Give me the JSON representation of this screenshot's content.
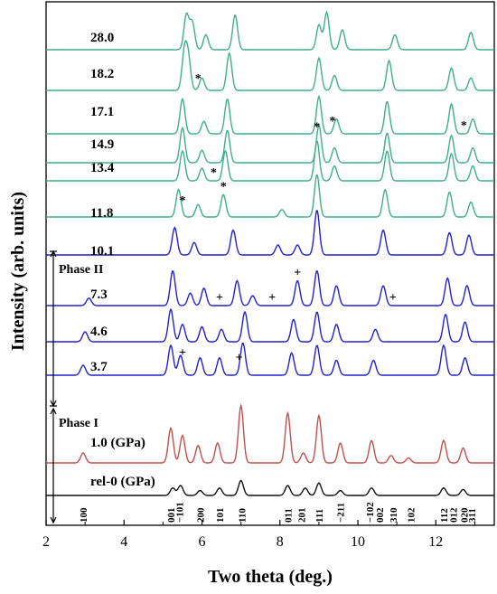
{
  "chart_data": {
    "type": "line",
    "xlabel": "Two theta (deg.)",
    "ylabel": "Intensity (arb. units)",
    "xlim": [
      2,
      13.5
    ],
    "xticks": [
      "2",
      "4",
      "6",
      "8",
      "10",
      "12"
    ],
    "xtick_values": [
      2,
      4,
      6,
      8,
      10,
      12
    ],
    "phase_labels": [
      {
        "label": "Phase II",
        "group": "blue"
      },
      {
        "label": "Phase I",
        "group": "low"
      }
    ],
    "colors": {
      "high": "#3fae8d",
      "mid": "#2222cc",
      "red": "#c0504d",
      "black": "#111111"
    },
    "series": [
      {
        "name": "28.0",
        "group": "high",
        "peaks": [
          [
            5.6,
            70
          ],
          [
            5.75,
            55
          ],
          [
            6.1,
            30
          ],
          [
            6.85,
            70
          ],
          [
            9.0,
            50
          ],
          [
            9.2,
            75
          ],
          [
            9.6,
            40
          ],
          [
            10.95,
            30
          ],
          [
            12.9,
            35
          ]
        ]
      },
      {
        "name": "18.2",
        "group": "high",
        "peaks": [
          [
            5.55,
            75
          ],
          [
            5.65,
            60
          ],
          [
            6.0,
            25
          ],
          [
            6.7,
            75
          ],
          [
            9.0,
            65
          ],
          [
            9.4,
            30
          ],
          [
            10.8,
            60
          ],
          [
            12.4,
            45
          ],
          [
            12.9,
            25
          ]
        ]
      },
      {
        "name": "17.1",
        "group": "high",
        "peaks": [
          [
            5.5,
            70
          ],
          [
            6.05,
            25
          ],
          [
            6.65,
            70
          ],
          [
            9.0,
            75
          ],
          [
            9.45,
            30
          ],
          [
            10.75,
            65
          ],
          [
            12.4,
            60
          ],
          [
            12.95,
            30
          ]
        ]
      },
      {
        "name": "14.9",
        "group": "high",
        "peaks": [
          [
            5.5,
            70
          ],
          [
            6.0,
            25
          ],
          [
            6.65,
            65
          ],
          [
            9.0,
            75
          ],
          [
            9.4,
            30
          ],
          [
            10.75,
            60
          ],
          [
            12.4,
            55
          ],
          [
            12.95,
            30
          ]
        ]
      },
      {
        "name": "13.4",
        "group": "high",
        "peaks": [
          [
            5.5,
            60
          ],
          [
            6.0,
            25
          ],
          [
            6.6,
            60
          ],
          [
            8.95,
            80
          ],
          [
            9.4,
            30
          ],
          [
            10.75,
            60
          ],
          [
            12.4,
            55
          ],
          [
            12.95,
            30
          ]
        ]
      },
      {
        "name": "11.8",
        "group": "high",
        "peaks": [
          [
            5.4,
            55
          ],
          [
            5.9,
            25
          ],
          [
            6.55,
            45
          ],
          [
            8.05,
            15
          ],
          [
            8.95,
            85
          ],
          [
            10.7,
            55
          ],
          [
            12.35,
            50
          ],
          [
            12.9,
            30
          ]
        ]
      },
      {
        "name": "10.1",
        "group": "mid",
        "peaks": [
          [
            5.3,
            55
          ],
          [
            5.8,
            25
          ],
          [
            6.8,
            50
          ],
          [
            7.95,
            20
          ],
          [
            8.45,
            20
          ],
          [
            8.95,
            90
          ],
          [
            10.65,
            50
          ],
          [
            12.35,
            45
          ],
          [
            12.85,
            40
          ]
        ]
      },
      {
        "name": "7.3",
        "group": "mid",
        "peaks": [
          [
            3.1,
            15
          ],
          [
            5.25,
            70
          ],
          [
            5.7,
            25
          ],
          [
            6.05,
            35
          ],
          [
            6.9,
            50
          ],
          [
            7.3,
            20
          ],
          [
            8.45,
            50
          ],
          [
            8.95,
            70
          ],
          [
            9.45,
            40
          ],
          [
            10.65,
            40
          ],
          [
            12.3,
            55
          ],
          [
            12.8,
            40
          ]
        ]
      },
      {
        "name": "4.6",
        "group": "mid",
        "peaks": [
          [
            3.0,
            20
          ],
          [
            5.2,
            65
          ],
          [
            5.5,
            35
          ],
          [
            6.0,
            30
          ],
          [
            6.5,
            25
          ],
          [
            7.1,
            60
          ],
          [
            8.35,
            45
          ],
          [
            8.95,
            60
          ],
          [
            9.45,
            35
          ],
          [
            10.45,
            25
          ],
          [
            12.25,
            55
          ],
          [
            12.75,
            40
          ]
        ]
      },
      {
        "name": "3.7",
        "group": "mid",
        "peaks": [
          [
            2.95,
            20
          ],
          [
            5.2,
            60
          ],
          [
            5.45,
            40
          ],
          [
            5.95,
            35
          ],
          [
            6.45,
            35
          ],
          [
            7.05,
            65
          ],
          [
            8.3,
            45
          ],
          [
            8.95,
            60
          ],
          [
            9.45,
            30
          ],
          [
            10.4,
            30
          ],
          [
            12.2,
            60
          ],
          [
            12.75,
            35
          ]
        ]
      },
      {
        "name": "1.0 (GPa)",
        "group": "red",
        "peaks": [
          [
            2.95,
            20
          ],
          [
            5.2,
            70
          ],
          [
            5.5,
            55
          ],
          [
            5.9,
            35
          ],
          [
            6.4,
            40
          ],
          [
            7.0,
            115
          ],
          [
            8.2,
            100
          ],
          [
            8.6,
            20
          ],
          [
            9.0,
            95
          ],
          [
            9.55,
            40
          ],
          [
            10.35,
            45
          ],
          [
            10.85,
            15
          ],
          [
            11.3,
            10
          ],
          [
            12.2,
            45
          ],
          [
            12.7,
            30
          ]
        ]
      },
      {
        "name": "rel-0 (GPa)",
        "group": "black",
        "peaks": [
          [
            5.25,
            15
          ],
          [
            5.45,
            20
          ],
          [
            5.95,
            10
          ],
          [
            6.45,
            15
          ],
          [
            7.0,
            30
          ],
          [
            8.2,
            20
          ],
          [
            8.65,
            15
          ],
          [
            9.0,
            25
          ],
          [
            9.55,
            10
          ],
          [
            10.35,
            15
          ],
          [
            12.2,
            15
          ],
          [
            12.7,
            12
          ]
        ]
      }
    ],
    "hkl_labels": [
      {
        "x": 2.95,
        "label": "100"
      },
      {
        "x": 5.2,
        "label": "001"
      },
      {
        "x": 5.42,
        "label": "−101"
      },
      {
        "x": 5.95,
        "label": "200"
      },
      {
        "x": 6.45,
        "label": "101"
      },
      {
        "x": 7.02,
        "label": "110"
      },
      {
        "x": 8.2,
        "label": "011"
      },
      {
        "x": 8.55,
        "label": "201"
      },
      {
        "x": 9.0,
        "label": "111"
      },
      {
        "x": 9.55,
        "label": "−211"
      },
      {
        "x": 10.3,
        "label": "−102"
      },
      {
        "x": 10.55,
        "label": "002"
      },
      {
        "x": 10.9,
        "label": "310"
      },
      {
        "x": 11.35,
        "label": "102"
      },
      {
        "x": 12.2,
        "label": "112"
      },
      {
        "x": 12.45,
        "label": "012"
      },
      {
        "x": 12.72,
        "label": "020"
      },
      {
        "x": 12.92,
        "label": "311"
      }
    ],
    "markers": [
      {
        "series": "18.2",
        "x": 5.9,
        "symbol": "*"
      },
      {
        "series": "17.1",
        "x": 9.35,
        "symbol": "*"
      },
      {
        "series": "17.1",
        "x": 12.72,
        "symbol": "*"
      },
      {
        "series": "14.9",
        "x": 8.95,
        "symbol": "*"
      },
      {
        "series": "13.4",
        "x": 6.3,
        "symbol": "*"
      },
      {
        "series": "11.8",
        "x": 5.5,
        "symbol": "*"
      },
      {
        "series": "11.8",
        "x": 6.55,
        "symbol": "*"
      },
      {
        "series": "7.3",
        "x": 6.45,
        "symbol": "+"
      },
      {
        "series": "7.3",
        "x": 7.8,
        "symbol": "+"
      },
      {
        "series": "7.3",
        "x": 8.45,
        "symbol": "+"
      },
      {
        "series": "7.3",
        "x": 10.9,
        "symbol": "+"
      },
      {
        "series": "3.7",
        "x": 5.5,
        "symbol": "+"
      },
      {
        "series": "3.7",
        "x": 6.95,
        "symbol": "+"
      }
    ],
    "grid": false,
    "legend": "none"
  }
}
